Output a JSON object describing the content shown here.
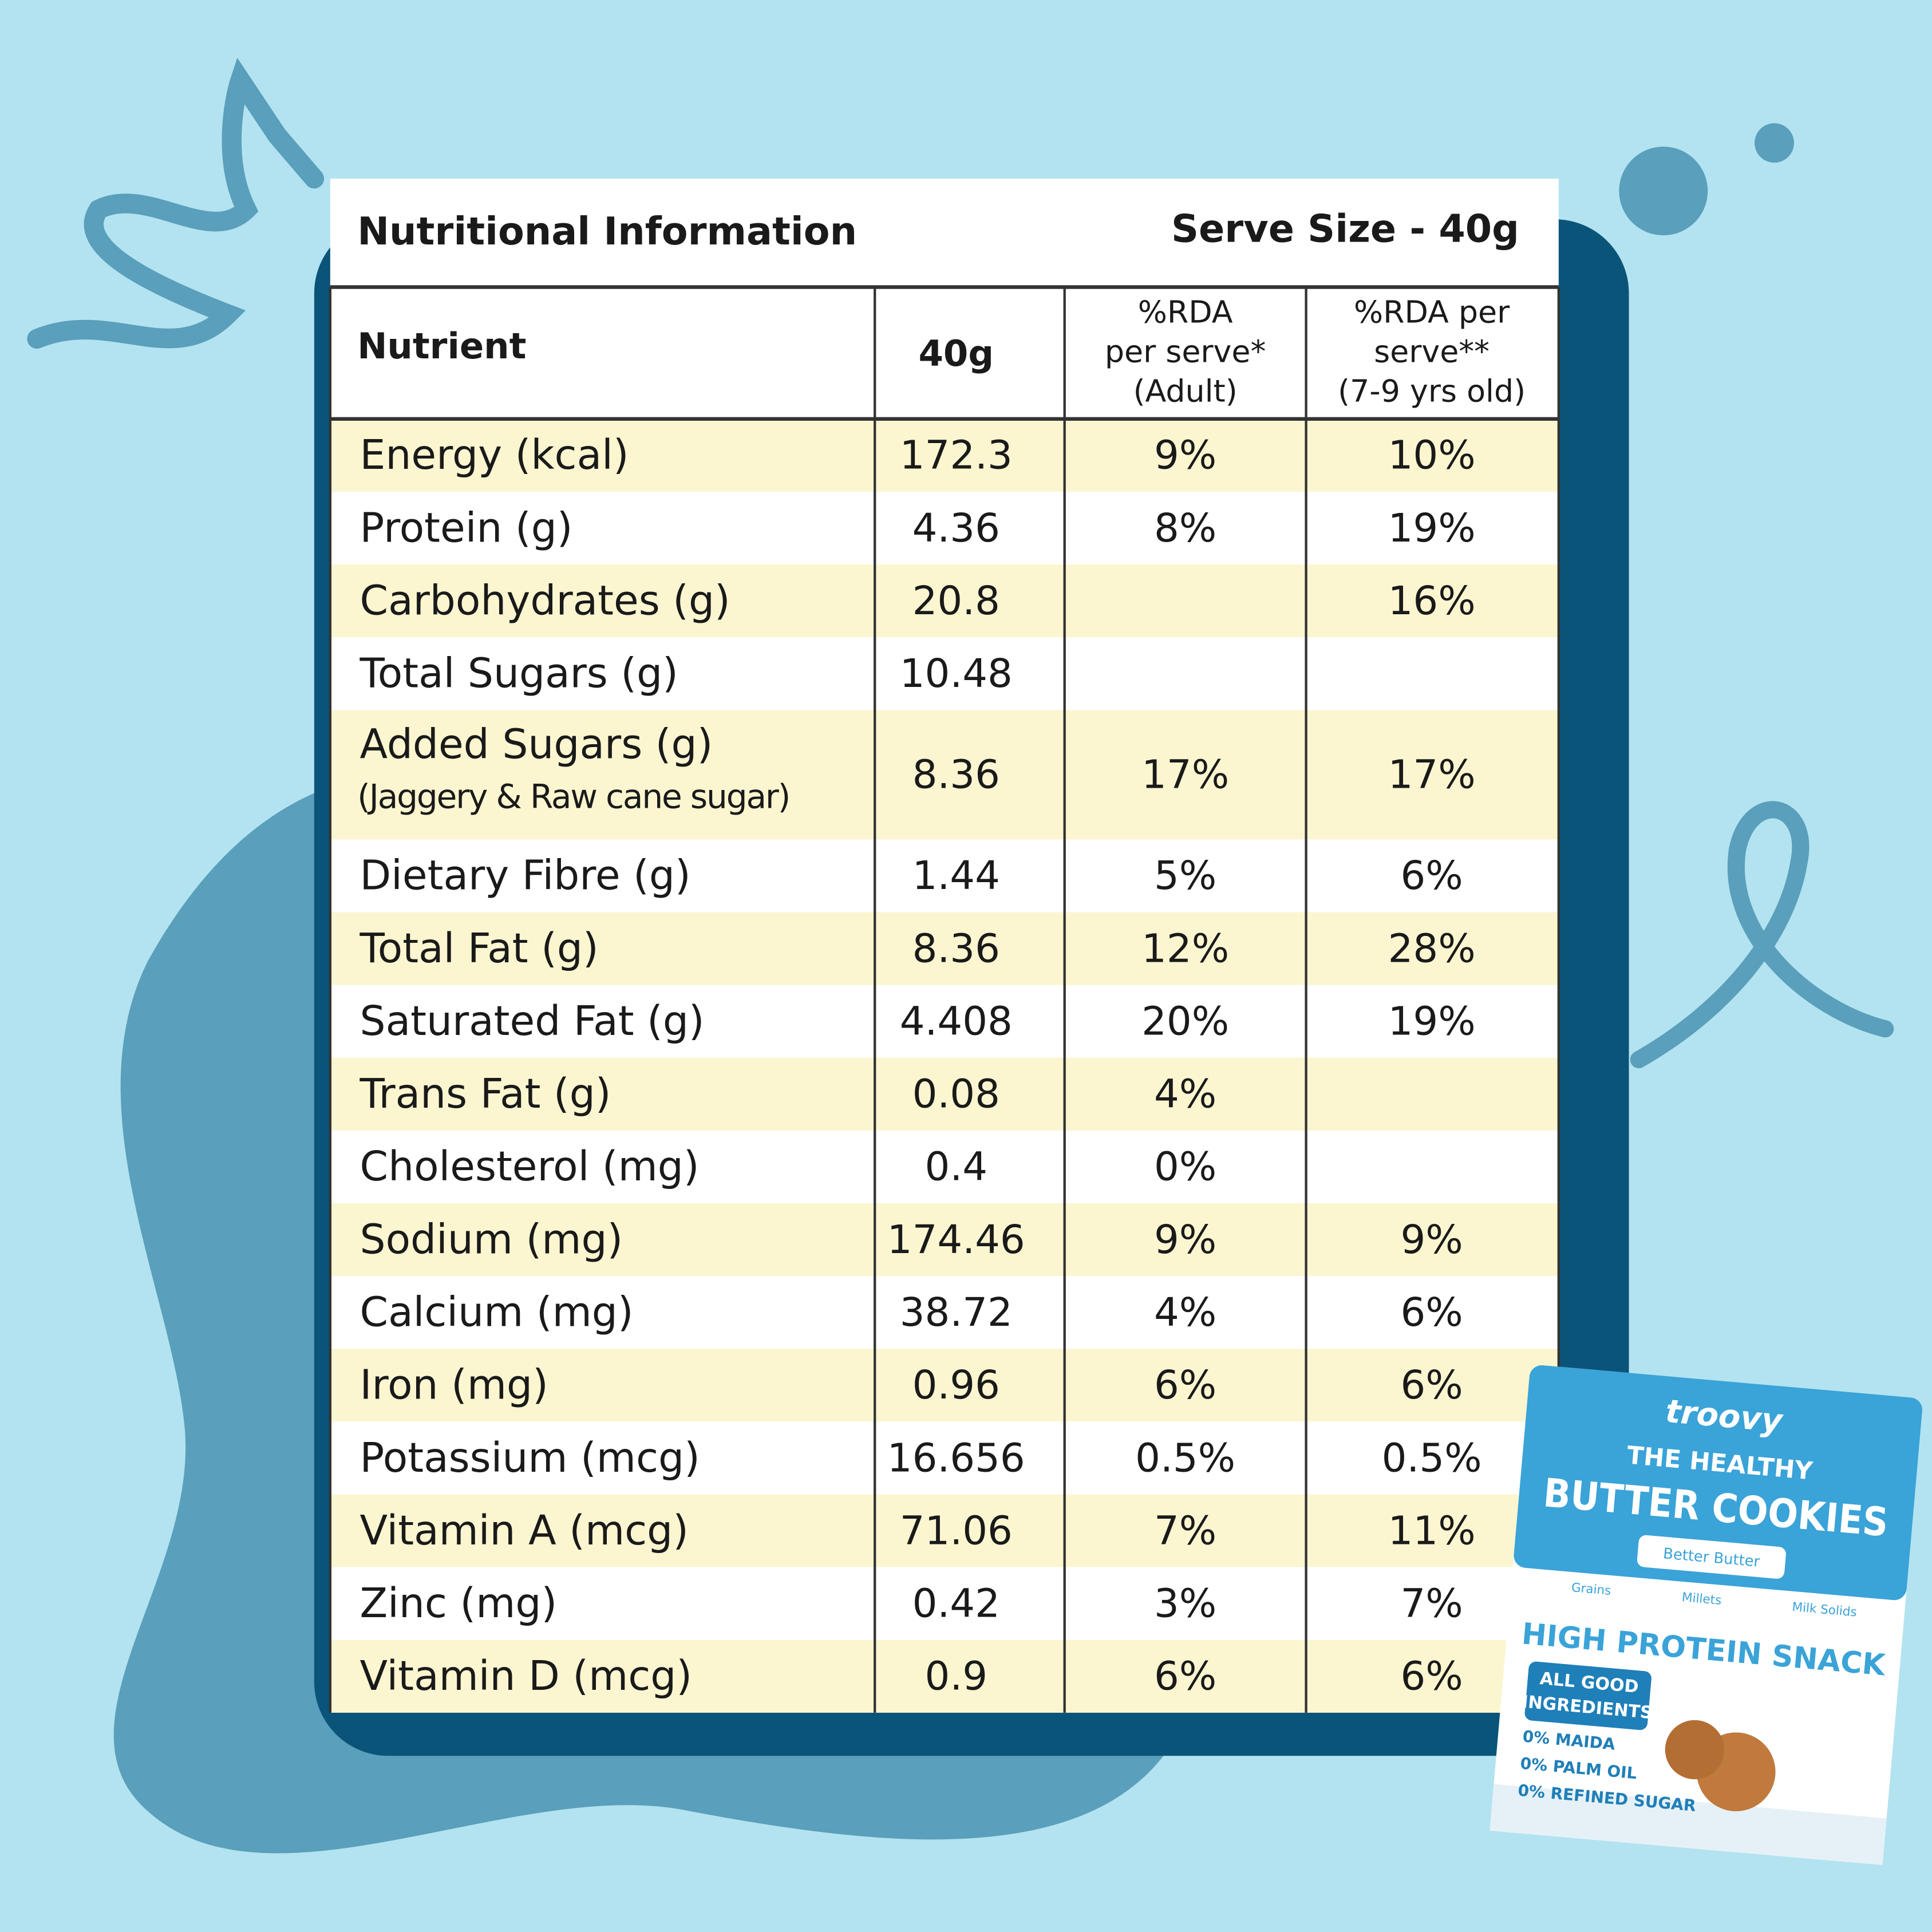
{
  "header": {
    "title": "Nutritional Information",
    "serve_size": "Serve Size - 40g"
  },
  "table": {
    "columns": [
      [
        "Nutrient"
      ],
      [
        "40g"
      ],
      [
        "%RDA",
        "per serve*",
        "(Adult)"
      ],
      [
        "%RDA per",
        "serve**",
        "(7-9 yrs old)"
      ]
    ],
    "rows": [
      {
        "nutrient": "Energy (kcal)",
        "note": null,
        "cells": [
          "172.3",
          "9%",
          "10%"
        ]
      },
      {
        "nutrient": "Protein (g)",
        "note": null,
        "cells": [
          "4.36",
          "8%",
          "19%"
        ]
      },
      {
        "nutrient": "Carbohydrates (g)",
        "note": null,
        "cells": [
          "20.8",
          null,
          "16%"
        ]
      },
      {
        "nutrient": "Total Sugars (g)",
        "note": null,
        "cells": [
          "10.48",
          null,
          null
        ]
      },
      {
        "nutrient": "Added Sugars (g)",
        "note": "(Jaggery & Raw cane sugar)",
        "cells": [
          "8.36",
          "17%",
          "17%"
        ]
      },
      {
        "nutrient": "Dietary Fibre (g)",
        "note": null,
        "cells": [
          "1.44",
          "5%",
          "6%"
        ]
      },
      {
        "nutrient": "Total Fat (g)",
        "note": null,
        "cells": [
          "8.36",
          "12%",
          "28%"
        ]
      },
      {
        "nutrient": "Saturated Fat (g)",
        "note": null,
        "cells": [
          "4.408",
          "20%",
          "19%"
        ]
      },
      {
        "nutrient": "Trans Fat (g)",
        "note": null,
        "cells": [
          "0.08",
          "4%",
          null
        ]
      },
      {
        "nutrient": "Cholesterol (mg)",
        "note": null,
        "cells": [
          "0.4",
          "0%",
          null
        ]
      },
      {
        "nutrient": "Sodium (mg)",
        "note": null,
        "cells": [
          "174.46",
          "9%",
          "9%"
        ]
      },
      {
        "nutrient": "Calcium (mg)",
        "note": null,
        "cells": [
          "38.72",
          "4%",
          "6%"
        ]
      },
      {
        "nutrient": "Iron (mg)",
        "note": null,
        "cells": [
          "0.96",
          "6%",
          "6%"
        ]
      },
      {
        "nutrient": "Potassium (mcg)",
        "note": null,
        "cells": [
          "16.656",
          "0.5%",
          "0.5%"
        ]
      },
      {
        "nutrient": "Vitamin A (mcg)",
        "note": null,
        "cells": [
          "71.06",
          "7%",
          "11%"
        ]
      },
      {
        "nutrient": "Zinc (mg)",
        "note": null,
        "cells": [
          "0.42",
          "3%",
          "7%"
        ]
      },
      {
        "nutrient": "Vitamin D (mcg)",
        "note": null,
        "cells": [
          "0.9",
          "6%",
          "6%"
        ]
      }
    ]
  },
  "package": {
    "brand": "troovy",
    "line1": "THE HEALTHY",
    "product": "BUTTER COOKIES",
    "tagline": "Better Butter",
    "ingredients": [
      "Grains",
      "Millets",
      "Milk Solids"
    ],
    "claim": "HIGH PROTEIN SNACK",
    "badge": [
      "ALL GOOD",
      "INGREDIENTS"
    ],
    "free_from": [
      "0% MAIDA",
      "0% PALM OIL",
      "0% REFINED SUGAR"
    ]
  }
}
